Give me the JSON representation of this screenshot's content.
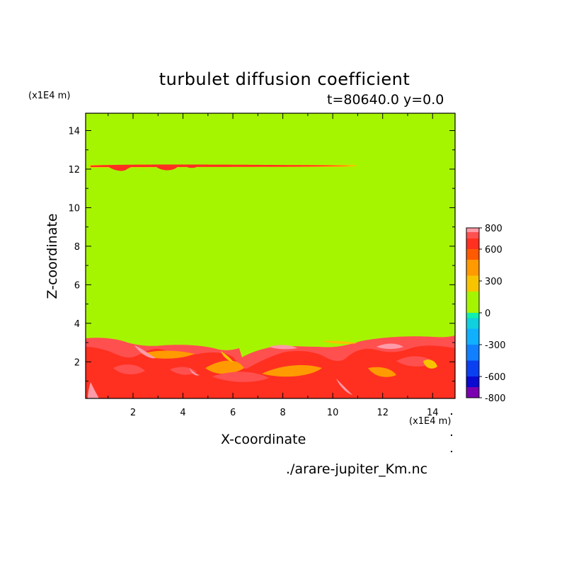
{
  "chart_data": {
    "type": "heatmap",
    "title": "turbulet diffusion coefficient",
    "subtitle": "t=80640.0 y=0.0",
    "xlabel": "X-coordinate",
    "ylabel": "Z-coordinate",
    "x_unit": "(x1E4 m)",
    "z_unit": "(x1E4 m)",
    "source_file": "./arare-jupiter_Km.nc",
    "xlim": [
      0.1,
      14.9
    ],
    "ylim": [
      0.1,
      14.9
    ],
    "x_ticks": [
      2,
      4,
      6,
      8,
      10,
      12,
      14
    ],
    "y_ticks": [
      2,
      4,
      6,
      8,
      10,
      12,
      14
    ],
    "colorbar": {
      "levels": [
        -800,
        -700,
        -600,
        -500,
        -400,
        -300,
        -200,
        -100,
        0,
        100,
        200,
        300,
        400,
        500,
        600,
        700,
        800
      ],
      "labels": [
        "800",
        "600",
        "300",
        "0",
        "-300",
        "-600",
        "-800"
      ],
      "colors": [
        "#7a00b0",
        "#0a0ad0",
        "#0a40f0",
        "#1080ff",
        "#10b0ff",
        "#10d0e0",
        "#10f0b0",
        "#a6f500",
        "#f8c400",
        "#ff9a00",
        "#ff5a00",
        "#ff3020",
        "#ff5050",
        "#ff9aa8"
      ]
    },
    "regions": [
      {
        "desc": "background",
        "value_range": [
          0,
          100
        ],
        "color": "#a6f500"
      },
      {
        "desc": "turbulent layer near bottom",
        "z_range": [
          0.1,
          3.3
        ],
        "value_range": [
          500,
          800
        ],
        "color": "#ff5050"
      },
      {
        "desc": "thin layer near top",
        "z": 12.2,
        "x_range": [
          0.2,
          11.0
        ],
        "value_range": [
          300,
          700
        ],
        "color": "#ff3020"
      }
    ]
  }
}
